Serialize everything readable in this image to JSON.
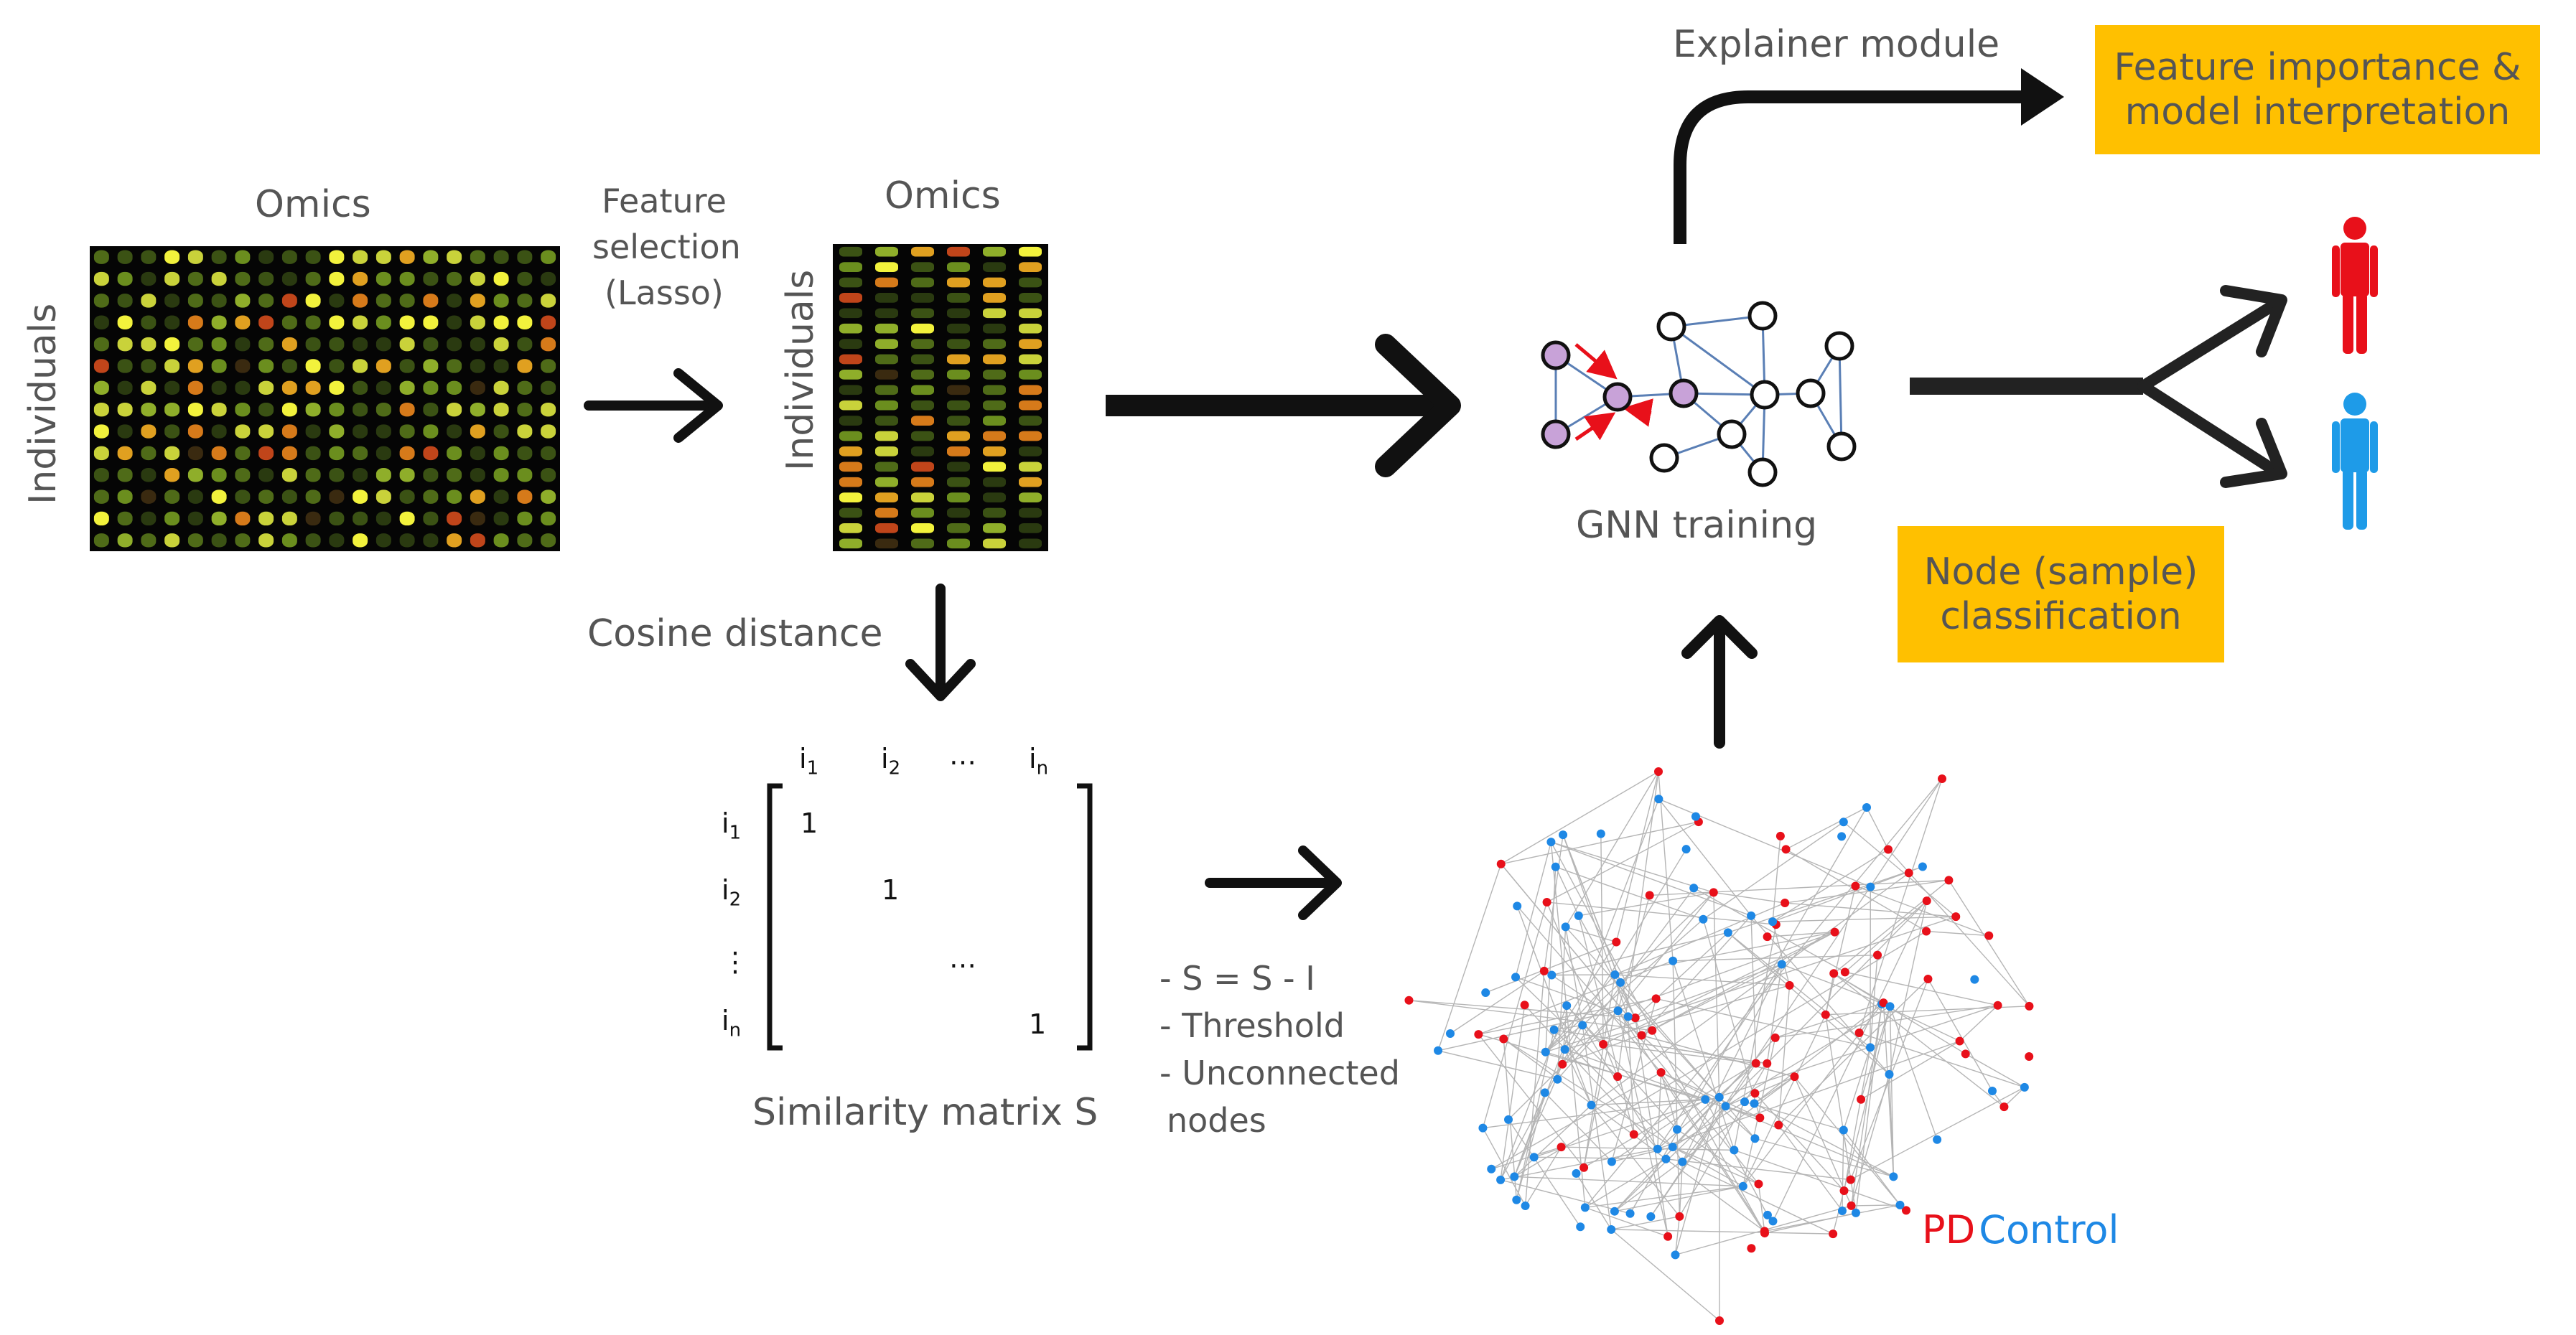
{
  "colors": {
    "pd": "#E8101A",
    "control": "#1E88E5",
    "highlight_box": "#FFC000",
    "node_purple": "#C8A2D8"
  },
  "labels": {
    "omics_left": "Omics",
    "individuals_left": "Individuals",
    "feature_selection": [
      "Feature",
      "selection",
      "(Lasso)"
    ],
    "omics_right": "Omics",
    "individuals_right": "Individuals",
    "cosine_distance": "Cosine distance",
    "similarity_matrix": "Similarity matrix S",
    "steps": [
      "- S = S - I",
      "- Threshold",
      "- Unconnected",
      "nodes"
    ],
    "gnn_training": "GNN training",
    "explainer_module": "Explainer module",
    "feature_importance": [
      "Feature importance &",
      "model interpretation"
    ],
    "node_classification": [
      "Node (sample)",
      "classification"
    ],
    "legend_pd": "PD",
    "legend_control": "Control"
  },
  "matrix": {
    "col_headers": [
      {
        "base": "i",
        "sub": "1"
      },
      {
        "base": "i",
        "sub": "2"
      },
      {
        "base": "…",
        "sub": ""
      },
      {
        "base": "i",
        "sub": "n"
      }
    ],
    "row_headers": [
      {
        "base": "i",
        "sub": "1"
      },
      {
        "base": "i",
        "sub": "2"
      },
      {
        "base": "⋮",
        "sub": ""
      },
      {
        "base": "i",
        "sub": "n"
      }
    ],
    "diagonal": [
      "1",
      "1",
      "…",
      "1"
    ]
  },
  "icons": [
    "arrow-icon",
    "person-red-icon",
    "person-blue-icon",
    "gnn-graph-icon",
    "network-graph-icon",
    "microarray-icon"
  ]
}
